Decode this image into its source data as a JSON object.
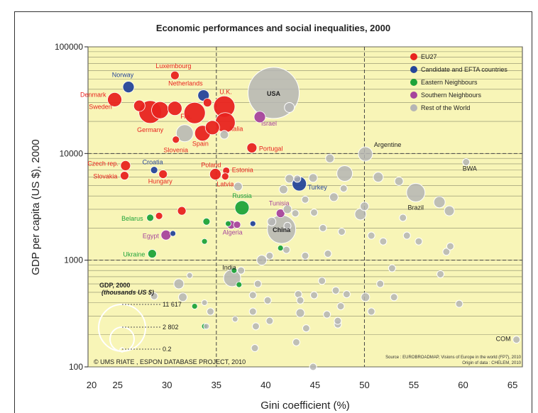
{
  "chart_data": {
    "type": "scatter",
    "title": "Economic performances and social inequalities, 2000",
    "xlabel": "Gini coefficient (%)",
    "ylabel": "GDP per capita (US $), 2000",
    "x_scale": "linear",
    "y_scale": "log",
    "xlim": [
      22,
      66
    ],
    "ylim": [
      100,
      100000
    ],
    "x_ticks": [
      "20",
      "25",
      "30",
      "35",
      "40",
      "45",
      "50",
      "55",
      "60",
      "65"
    ],
    "y_ticks": [
      "100000",
      "10000",
      "1000",
      "100"
    ],
    "reference_lines": {
      "x": [
        35,
        50
      ],
      "y": [
        10000,
        1000
      ]
    },
    "grid": "horizontal",
    "legend_position": "top-right",
    "legend": [
      {
        "name": "EU27",
        "color": "#e8231f"
      },
      {
        "name": "Candidate and EFTA countries",
        "color": "#25459a"
      },
      {
        "name": "Eastern Neighbours",
        "color": "#1fa33a"
      },
      {
        "name": "Southern Neighbours",
        "color": "#a6449c"
      },
      {
        "name": "Rest of the World",
        "color": "#b5b5b5"
      }
    ],
    "size_legend": {
      "title": "GDP, 2000",
      "subtitle": "(thousands US $)",
      "values": [
        "11 617",
        "2 802",
        "0.2"
      ]
    },
    "source": "Source : EUROBROADMAP, Visions of Europe in the world (FP7), 2010",
    "origin": "Origin of data : CHELEM, 2010",
    "credit": "© UMS RIATE , ESPON DATABASE PROJECT, 2010",
    "series": [
      {
        "name": "EU27",
        "color": "#e8231f",
        "points": [
          {
            "label": "Luxembourg",
            "x": 30.8,
            "y": 54000,
            "r": 6
          },
          {
            "label": "Denmark",
            "x": 24.7,
            "y": 32000,
            "r": 10
          },
          {
            "label": "Sweden",
            "x": 25.0,
            "y": 27000,
            "r": 0
          },
          {
            "label": "Netherlands",
            "x": 32.6,
            "y": 34000,
            "r": 0
          },
          {
            "label": "Germany",
            "x": 28.3,
            "y": 24500,
            "r": 16
          },
          {
            "label": "",
            "x": 29.3,
            "y": 25500,
            "r": 12
          },
          {
            "label": "",
            "x": 27.2,
            "y": 28000,
            "r": 8
          },
          {
            "label": "",
            "x": 30.8,
            "y": 26500,
            "r": 10
          },
          {
            "label": "Fra.",
            "x": 32.8,
            "y": 24000,
            "r": 15
          },
          {
            "label": "U.K.",
            "x": 35.8,
            "y": 27500,
            "r": 15
          },
          {
            "label": "Italia",
            "x": 35.9,
            "y": 19500,
            "r": 14
          },
          {
            "label": "",
            "x": 34.6,
            "y": 17500,
            "r": 10
          },
          {
            "label": "Spain",
            "x": 33.6,
            "y": 15500,
            "r": 11
          },
          {
            "label": "",
            "x": 34.1,
            "y": 30000,
            "r": 6
          },
          {
            "label": "Slovenia",
            "x": 30.9,
            "y": 13500,
            "r": 5
          },
          {
            "label": "Portugal",
            "x": 38.6,
            "y": 11300,
            "r": 7
          },
          {
            "label": "Czech rep.",
            "x": 25.8,
            "y": 7700,
            "r": 7
          },
          {
            "label": "Slovakia",
            "x": 25.7,
            "y": 6200,
            "r": 6
          },
          {
            "label": "Hungary",
            "x": 29.6,
            "y": 6400,
            "r": 6
          },
          {
            "label": "Poland",
            "x": 34.9,
            "y": 6400,
            "r": 8
          },
          {
            "label": "Estonia",
            "x": 36.0,
            "y": 6900,
            "r": 5
          },
          {
            "label": "Latvia",
            "x": 35.9,
            "y": 6100,
            "r": 5
          },
          {
            "label": "",
            "x": 31.5,
            "y": 2900,
            "r": 6
          },
          {
            "label": "",
            "x": 29.2,
            "y": 2600,
            "r": 5
          }
        ]
      },
      {
        "name": "Candidate and EFTA countries",
        "color": "#25459a",
        "points": [
          {
            "label": "Norway",
            "x": 26.1,
            "y": 42000,
            "r": 8
          },
          {
            "label": "",
            "x": 33.7,
            "y": 35000,
            "r": 8
          },
          {
            "label": "Croatia",
            "x": 28.7,
            "y": 7000,
            "r": 5
          },
          {
            "label": "Turkey",
            "x": 43.4,
            "y": 5200,
            "r": 10
          },
          {
            "label": "",
            "x": 30.6,
            "y": 1780,
            "r": 4
          },
          {
            "label": "",
            "x": 38.7,
            "y": 2200,
            "r": 4
          }
        ]
      },
      {
        "name": "Eastern Neighbours",
        "color": "#1fa33a",
        "points": [
          {
            "label": "Russia",
            "x": 37.6,
            "y": 3100,
            "r": 10
          },
          {
            "label": "Belarus",
            "x": 28.3,
            "y": 2500,
            "r": 5
          },
          {
            "label": "Ukraine",
            "x": 28.5,
            "y": 1150,
            "r": 6
          },
          {
            "label": "",
            "x": 34.0,
            "y": 2300,
            "r": 5
          },
          {
            "label": "",
            "x": 33.8,
            "y": 1500,
            "r": 4
          },
          {
            "label": "",
            "x": 36.2,
            "y": 2200,
            "r": 4
          },
          {
            "label": "",
            "x": 41.5,
            "y": 1300,
            "r": 4
          },
          {
            "label": "",
            "x": 36.8,
            "y": 800,
            "r": 4
          },
          {
            "label": "",
            "x": 37.3,
            "y": 590,
            "r": 4
          },
          {
            "label": "",
            "x": 32.8,
            "y": 370,
            "r": 4
          },
          {
            "label": "",
            "x": 33.8,
            "y": 240,
            "r": 4
          }
        ]
      },
      {
        "name": "Southern Neighbours",
        "color": "#a6449c",
        "points": [
          {
            "label": "Israel",
            "x": 39.4,
            "y": 22000,
            "r": 8
          },
          {
            "label": "Tunisia",
            "x": 41.5,
            "y": 2750,
            "r": 6
          },
          {
            "label": "Egypt",
            "x": 29.9,
            "y": 1720,
            "r": 7
          },
          {
            "label": "Algeria",
            "x": 36.5,
            "y": 2150,
            "r": 6
          },
          {
            "label": "",
            "x": 37.1,
            "y": 2150,
            "r": 5
          }
        ]
      },
      {
        "name": "Rest of the World",
        "color": "#b5b5b5",
        "points": [
          {
            "label": "USA",
            "x": 40.8,
            "y": 37000,
            "r": 36
          },
          {
            "label": "Argentine",
            "x": 50.1,
            "y": 9900,
            "r": 10
          },
          {
            "label": "BWA",
            "x": 60.3,
            "y": 8300,
            "r": 5
          },
          {
            "label": "Brazil",
            "x": 55.2,
            "y": 4300,
            "r": 13
          },
          {
            "label": "China",
            "x": 41.6,
            "y": 1950,
            "r": 20
          },
          {
            "label": "India",
            "x": 36.6,
            "y": 680,
            "r": 12
          },
          {
            "label": "COM",
            "x": 65.4,
            "y": 180,
            "r": 5
          },
          {
            "label": "",
            "x": 31.8,
            "y": 15500,
            "r": 12
          },
          {
            "label": "",
            "x": 35.8,
            "y": 15000,
            "r": 6
          },
          {
            "label": "",
            "x": 41.8,
            "y": 4600,
            "r": 6
          },
          {
            "label": "",
            "x": 42.4,
            "y": 5800,
            "r": 6
          },
          {
            "label": "",
            "x": 48.0,
            "y": 6500,
            "r": 11
          },
          {
            "label": "",
            "x": 51.4,
            "y": 6000,
            "r": 7
          },
          {
            "label": "",
            "x": 53.5,
            "y": 5500,
            "r": 6
          },
          {
            "label": "",
            "x": 46.5,
            "y": 9000,
            "r": 6
          },
          {
            "label": "",
            "x": 44.0,
            "y": 3700,
            "r": 5
          },
          {
            "label": "",
            "x": 46.9,
            "y": 3900,
            "r": 6
          },
          {
            "label": "",
            "x": 47.9,
            "y": 4700,
            "r": 5
          },
          {
            "label": "",
            "x": 44.9,
            "y": 2800,
            "r": 5
          },
          {
            "label": "",
            "x": 49.6,
            "y": 2700,
            "r": 8
          },
          {
            "label": "",
            "x": 50.0,
            "y": 3200,
            "r": 6
          },
          {
            "label": "",
            "x": 53.9,
            "y": 2500,
            "r": 5
          },
          {
            "label": "",
            "x": 57.6,
            "y": 3500,
            "r": 8
          },
          {
            "label": "",
            "x": 58.6,
            "y": 2900,
            "r": 7
          },
          {
            "label": "",
            "x": 43.0,
            "y": 2750,
            "r": 5
          },
          {
            "label": "",
            "x": 45.8,
            "y": 2000,
            "r": 5
          },
          {
            "label": "",
            "x": 47.7,
            "y": 1850,
            "r": 5
          },
          {
            "label": "",
            "x": 50.7,
            "y": 1700,
            "r": 5
          },
          {
            "label": "",
            "x": 54.3,
            "y": 1700,
            "r": 5
          },
          {
            "label": "",
            "x": 55.5,
            "y": 1500,
            "r": 5
          },
          {
            "label": "",
            "x": 58.3,
            "y": 1200,
            "r": 5
          },
          {
            "label": "",
            "x": 58.7,
            "y": 1350,
            "r": 5
          },
          {
            "label": "",
            "x": 51.9,
            "y": 1500,
            "r": 5
          },
          {
            "label": "",
            "x": 39.6,
            "y": 1000,
            "r": 7
          },
          {
            "label": "",
            "x": 40.4,
            "y": 1100,
            "r": 5
          },
          {
            "label": "",
            "x": 42.1,
            "y": 1250,
            "r": 5
          },
          {
            "label": "",
            "x": 44.0,
            "y": 1100,
            "r": 5
          },
          {
            "label": "",
            "x": 46.3,
            "y": 1150,
            "r": 5
          },
          {
            "label": "",
            "x": 40.6,
            "y": 2300,
            "r": 6
          },
          {
            "label": "",
            "x": 42.2,
            "y": 2100,
            "r": 5
          },
          {
            "label": "",
            "x": 37.5,
            "y": 800,
            "r": 5
          },
          {
            "label": "",
            "x": 39.2,
            "y": 600,
            "r": 5
          },
          {
            "label": "",
            "x": 38.7,
            "y": 470,
            "r": 5
          },
          {
            "label": "",
            "x": 40.2,
            "y": 420,
            "r": 5
          },
          {
            "label": "",
            "x": 43.3,
            "y": 480,
            "r": 5
          },
          {
            "label": "",
            "x": 44.9,
            "y": 470,
            "r": 5
          },
          {
            "label": "",
            "x": 47.1,
            "y": 520,
            "r": 5
          },
          {
            "label": "",
            "x": 48.2,
            "y": 480,
            "r": 5
          },
          {
            "label": "",
            "x": 50.1,
            "y": 450,
            "r": 6
          },
          {
            "label": "",
            "x": 51.6,
            "y": 600,
            "r": 5
          },
          {
            "label": "",
            "x": 52.8,
            "y": 840,
            "r": 5
          },
          {
            "label": "",
            "x": 53.0,
            "y": 450,
            "r": 5
          },
          {
            "label": "",
            "x": 57.7,
            "y": 740,
            "r": 5
          },
          {
            "label": "",
            "x": 59.6,
            "y": 390,
            "r": 5
          },
          {
            "label": "",
            "x": 46.2,
            "y": 310,
            "r": 5
          },
          {
            "label": "",
            "x": 47.6,
            "y": 370,
            "r": 5
          },
          {
            "label": "",
            "x": 47.3,
            "y": 250,
            "r": 5
          },
          {
            "label": "",
            "x": 50.7,
            "y": 330,
            "r": 5
          },
          {
            "label": "",
            "x": 45.7,
            "y": 640,
            "r": 5
          },
          {
            "label": "",
            "x": 43.5,
            "y": 420,
            "r": 5
          },
          {
            "label": "",
            "x": 43.5,
            "y": 320,
            "r": 6
          },
          {
            "label": "",
            "x": 44.1,
            "y": 230,
            "r": 5
          },
          {
            "label": "",
            "x": 43.1,
            "y": 170,
            "r": 5
          },
          {
            "label": "",
            "x": 40.4,
            "y": 270,
            "r": 5
          },
          {
            "label": "",
            "x": 38.7,
            "y": 330,
            "r": 5
          },
          {
            "label": "",
            "x": 39.0,
            "y": 240,
            "r": 5
          },
          {
            "label": "",
            "x": 36.9,
            "y": 280,
            "r": 4
          },
          {
            "label": "",
            "x": 34.4,
            "y": 330,
            "r": 5
          },
          {
            "label": "",
            "x": 34.0,
            "y": 240,
            "r": 4
          },
          {
            "label": "",
            "x": 31.6,
            "y": 450,
            "r": 6
          },
          {
            "label": "",
            "x": 31.2,
            "y": 600,
            "r": 7
          },
          {
            "label": "",
            "x": 32.3,
            "y": 720,
            "r": 4
          },
          {
            "label": "",
            "x": 28.7,
            "y": 460,
            "r": 5
          },
          {
            "label": "",
            "x": 33.8,
            "y": 400,
            "r": 4
          },
          {
            "label": "",
            "x": 38.9,
            "y": 150,
            "r": 5
          },
          {
            "label": "",
            "x": 44.8,
            "y": 100,
            "r": 5
          },
          {
            "label": "",
            "x": 47.3,
            "y": 270,
            "r": 5
          },
          {
            "label": "",
            "x": 42.2,
            "y": 3000,
            "r": 6
          },
          {
            "label": "",
            "x": 43.2,
            "y": 5800,
            "r": 5
          },
          {
            "label": "",
            "x": 44.8,
            "y": 5900,
            "r": 6
          },
          {
            "label": "",
            "x": 37.2,
            "y": 4900,
            "r": 6
          },
          {
            "label": "",
            "x": 42.4,
            "y": 27000,
            "r": 7
          }
        ]
      }
    ]
  }
}
